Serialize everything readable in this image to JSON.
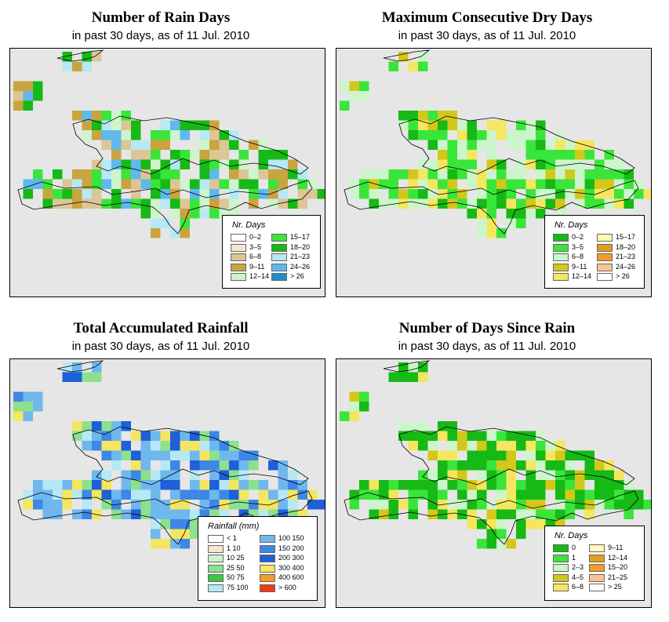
{
  "panels": [
    {
      "title": "Number of Rain Days",
      "subtitle": "in past 30 days, as of  11 Jul. 2010",
      "legend": {
        "title": "Nr. Days",
        "items": [
          {
            "label": "0–2",
            "color": "#ffffff"
          },
          {
            "label": "3–5",
            "color": "#f5e6cc"
          },
          {
            "label": "6–8",
            "color": "#ddc596"
          },
          {
            "label": "9–11",
            "color": "#c9a43f"
          },
          {
            "label": "12–14",
            "color": "#ccf5cc"
          },
          {
            "label": "15–17",
            "color": "#3ae53a"
          },
          {
            "label": "18–20",
            "color": "#16b916"
          },
          {
            "label": "21–23",
            "color": "#b7e8f5"
          },
          {
            "label": "24–26",
            "color": "#5fb8ee"
          },
          {
            "label": "> 26",
            "color": "#1e8fc8"
          }
        ]
      }
    },
    {
      "title": "Maximum Consecutive Dry Days",
      "subtitle": "in past 30 days, as of  11 Jul. 2010",
      "legend": {
        "title": "Nr. Days",
        "items": [
          {
            "label": "0–2",
            "color": "#16b916"
          },
          {
            "label": "3–5",
            "color": "#3ae53a"
          },
          {
            "label": "6–8",
            "color": "#ccf5cc"
          },
          {
            "label": "9–11",
            "color": "#d2c81a"
          },
          {
            "label": "12–14",
            "color": "#f5e65f"
          },
          {
            "label": "15–17",
            "color": "#fff7b3"
          },
          {
            "label": "18–20",
            "color": "#e0a01a"
          },
          {
            "label": "21–23",
            "color": "#f29c2a"
          },
          {
            "label": "24–26",
            "color": "#f9c196"
          },
          {
            "label": "> 26",
            "color": "#ffffff"
          }
        ]
      }
    },
    {
      "title": "Total Accumulated Rainfall",
      "subtitle": "in past 30 days, as of  11 Jul. 2010",
      "legend": {
        "title": "Rainfall (mm)",
        "items": [
          {
            "label": "< 1",
            "color": "#ffffff"
          },
          {
            "label": "1   10",
            "color": "#f5e6cc"
          },
          {
            "label": "10   25",
            "color": "#ccf5cc"
          },
          {
            "label": "25   50",
            "color": "#8de08d"
          },
          {
            "label": "50   75",
            "color": "#3dc83d"
          },
          {
            "label": "75   100",
            "color": "#b7e8f5"
          },
          {
            "label": "100   150",
            "color": "#6fb8ee"
          },
          {
            "label": "150   200",
            "color": "#3d87e6"
          },
          {
            "label": "200   300",
            "color": "#1f5fd8"
          },
          {
            "label": "300   400",
            "color": "#f5e65f"
          },
          {
            "label": "400   600",
            "color": "#f29c2a"
          },
          {
            "label": "> 600",
            "color": "#f03a1a"
          }
        ]
      }
    },
    {
      "title": "Number of Days Since Rain",
      "subtitle": "in past 30 days, as of  11 Jul. 2010",
      "legend": {
        "title": "Nr. Days",
        "items": [
          {
            "label": "0",
            "color": "#16b916"
          },
          {
            "label": "1",
            "color": "#3ae53a"
          },
          {
            "label": "2–3",
            "color": "#ccf5cc"
          },
          {
            "label": "4–5",
            "color": "#d2c81a"
          },
          {
            "label": "6–8",
            "color": "#f5e65f"
          },
          {
            "label": "9–11",
            "color": "#fff7b3"
          },
          {
            "label": "12–14",
            "color": "#e0a01a"
          },
          {
            "label": "15–20",
            "color": "#f29c2a"
          },
          {
            "label": "21–25",
            "color": "#f9c196"
          },
          {
            "label": "> 25",
            "color": "#ffffff"
          }
        ]
      }
    }
  ]
}
